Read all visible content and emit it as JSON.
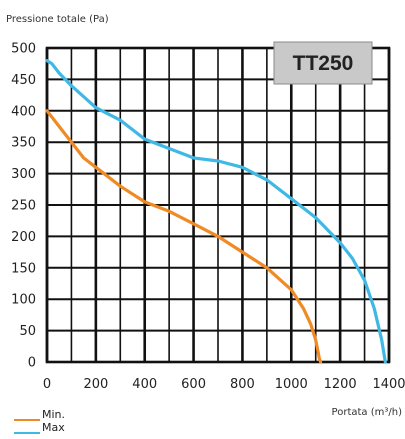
{
  "chart_data": {
    "type": "line",
    "title": "TT250",
    "ylabel": "Pressione totale (Pa)",
    "xlabel": "Portata (m³/h)",
    "xlim": [
      0,
      1400
    ],
    "ylim": [
      0,
      500
    ],
    "xticks": [
      "0",
      "200",
      "400",
      "600",
      "800",
      "1000",
      "1200",
      "1400"
    ],
    "yticks": [
      "0",
      "50",
      "100",
      "150",
      "200",
      "250",
      "300",
      "350",
      "400",
      "450",
      "500"
    ],
    "grid": true,
    "legend_position": "bottom-left",
    "series": [
      {
        "name": "Min.",
        "color": "#F08A24",
        "x": [
          0,
          50,
          100,
          150,
          200,
          300,
          400,
          500,
          600,
          700,
          800,
          900,
          1000,
          1050,
          1080,
          1100,
          1110,
          1115,
          1120
        ],
        "y": [
          400,
          375,
          350,
          325,
          310,
          280,
          255,
          240,
          220,
          200,
          175,
          150,
          115,
          85,
          60,
          35,
          15,
          5,
          0
        ]
      },
      {
        "name": "Max",
        "color": "#3FB8E6",
        "x": [
          0,
          20,
          50,
          100,
          200,
          300,
          400,
          500,
          600,
          700,
          800,
          900,
          1000,
          1100,
          1200,
          1250,
          1300,
          1340,
          1370,
          1385
        ],
        "y": [
          480,
          475,
          460,
          440,
          405,
          385,
          355,
          340,
          325,
          320,
          310,
          290,
          260,
          230,
          190,
          165,
          130,
          85,
          35,
          0
        ]
      }
    ]
  }
}
